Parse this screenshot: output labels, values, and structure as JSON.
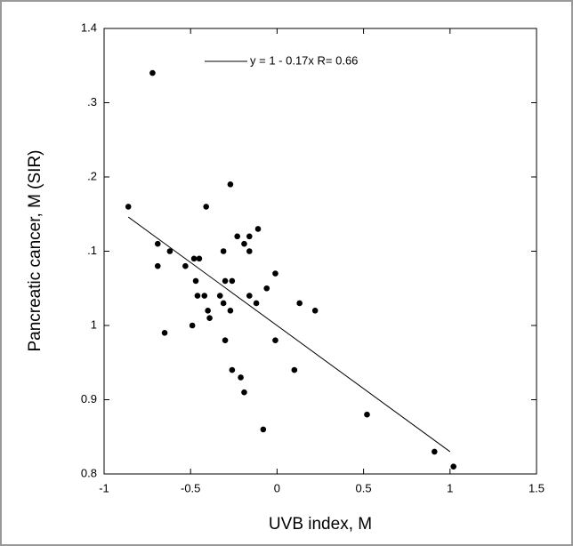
{
  "chart_data": {
    "type": "scatter",
    "xlabel": "UVB index, M",
    "ylabel": "Pancreatic cancer, M (SIR)",
    "xlim": [
      -1,
      1.5
    ],
    "ylim": [
      0.8,
      1.4
    ],
    "xticks": [
      -1,
      -0.5,
      0,
      0.5,
      1,
      1.5
    ],
    "yticks": [
      {
        "value": 0.8,
        "label": "0.8"
      },
      {
        "value": 0.9,
        "label": "0.9"
      },
      1,
      {
        "value": 1.1,
        "label": ".1"
      },
      {
        "value": 1.2,
        "label": ".2"
      },
      {
        "value": 1.3,
        "label": ".3"
      },
      {
        "value": 1.4,
        "label": "1.4"
      }
    ],
    "series": [
      {
        "color": "#000000",
        "x": [
          -0.72,
          -0.86,
          -0.27,
          -0.41,
          -0.69,
          -0.62,
          -0.69,
          -0.53,
          -0.48,
          -0.45,
          -0.47,
          -0.46,
          -0.42,
          -0.4,
          -0.39,
          -0.49,
          -0.65,
          -0.33,
          -0.31,
          -0.31,
          -0.3,
          -0.26,
          -0.27,
          -0.3,
          -0.26,
          -0.23,
          -0.19,
          -0.16,
          -0.16,
          -0.11,
          -0.16,
          -0.12,
          -0.21,
          -0.19,
          -0.08,
          -0.06,
          -0.01,
          -0.01,
          0.13,
          0.22,
          0.1,
          0.52,
          0.91,
          1.02
        ],
        "values": [
          1.34,
          1.16,
          1.19,
          1.16,
          1.11,
          1.1,
          1.08,
          1.08,
          1.09,
          1.09,
          1.06,
          1.04,
          1.04,
          1.02,
          1.01,
          1.0,
          0.99,
          1.04,
          1.03,
          1.1,
          1.06,
          1.06,
          1.02,
          0.98,
          0.94,
          1.12,
          1.11,
          1.12,
          1.1,
          1.13,
          1.04,
          1.03,
          0.93,
          0.91,
          0.86,
          1.05,
          1.07,
          0.98,
          1.03,
          1.02,
          0.94,
          0.88,
          0.83,
          0.81
        ]
      },
      {
        "name": "y = 1 - 0.17x   R= 0.66",
        "type": "line",
        "color": "#000000",
        "x": [
          -0.86,
          1.0
        ],
        "values": [
          1.146,
          0.83
        ]
      }
    ]
  }
}
